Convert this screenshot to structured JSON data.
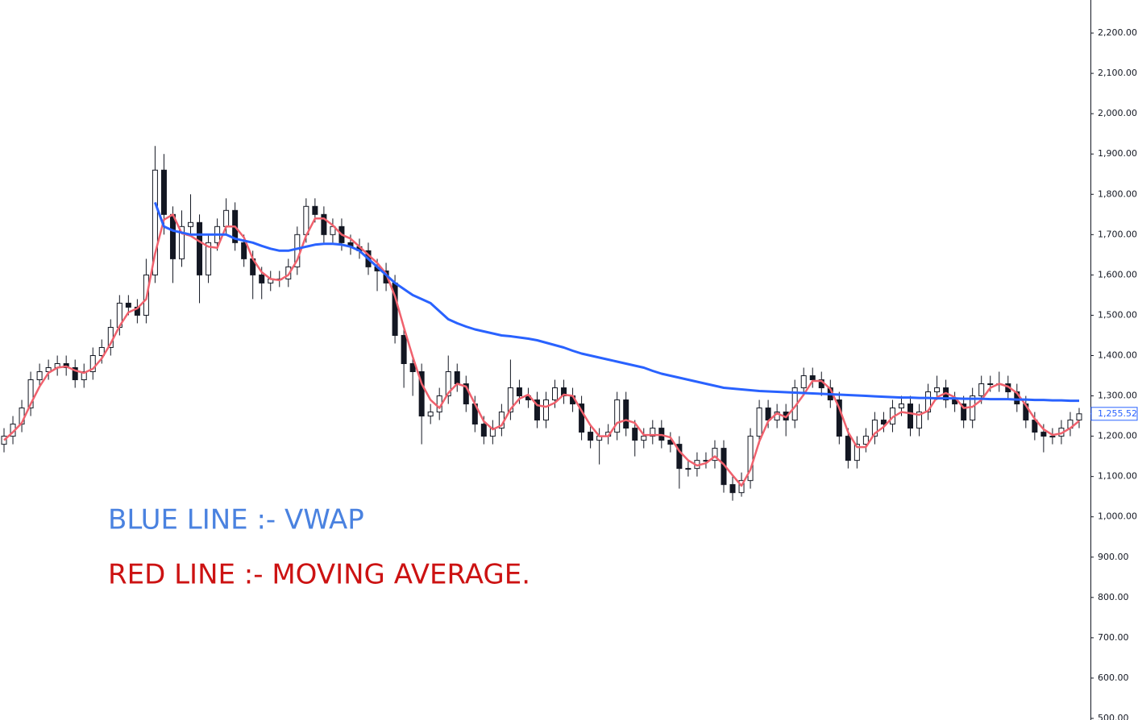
{
  "chart_data": {
    "type": "candlestick",
    "ylim": [
      496,
      2282
    ],
    "yticks": [
      {
        "value": 500,
        "label": "500.00"
      },
      {
        "value": 600,
        "label": "600.00"
      },
      {
        "value": 700,
        "label": "700.00"
      },
      {
        "value": 800,
        "label": "800.00"
      },
      {
        "value": 900,
        "label": "900.00"
      },
      {
        "value": 1000,
        "label": "1,000.00"
      },
      {
        "value": 1100,
        "label": "1,100.00"
      },
      {
        "value": 1200,
        "label": "1,200.00"
      },
      {
        "value": 1300,
        "label": "1,300.00"
      },
      {
        "value": 1400,
        "label": "1,400.00"
      },
      {
        "value": 1500,
        "label": "1,500.00"
      },
      {
        "value": 1600,
        "label": "1,600.00"
      },
      {
        "value": 1700,
        "label": "1,700.00"
      },
      {
        "value": 1800,
        "label": "1,800.00"
      },
      {
        "value": 1900,
        "label": "1,900.00"
      },
      {
        "value": 2000,
        "label": "2,000.00"
      },
      {
        "value": 2100,
        "label": "2,100.00"
      },
      {
        "value": 2200,
        "label": "2,200.00"
      }
    ],
    "up_color": "#ffffff",
    "down_color": "#131722",
    "open": [
      1180,
      1200,
      1230,
      1270,
      1340,
      1360,
      1370,
      1380,
      1370,
      1340,
      1360,
      1400,
      1420,
      1470,
      1530,
      1520,
      1500,
      1600,
      1860,
      1750,
      1640,
      1720,
      1730,
      1600,
      1680,
      1720,
      1760,
      1680,
      1640,
      1600,
      1580,
      1590,
      1590,
      1620,
      1700,
      1770,
      1750,
      1700,
      1720,
      1680,
      1670,
      1660,
      1620,
      1610,
      1580,
      1450,
      1380,
      1360,
      1250,
      1260,
      1300,
      1360,
      1330,
      1280,
      1230,
      1200,
      1220,
      1260,
      1320,
      1300,
      1290,
      1240,
      1290,
      1320,
      1300,
      1280,
      1210,
      1190,
      1200,
      1210,
      1290,
      1220,
      1190,
      1200,
      1220,
      1190,
      1180,
      1120,
      1120,
      1140,
      1140,
      1170,
      1080,
      1060,
      1090,
      1200,
      1270,
      1240,
      1260,
      1240,
      1320,
      1350,
      1340,
      1320,
      1290,
      1200,
      1140,
      1180,
      1200,
      1240,
      1230,
      1270,
      1280,
      1220,
      1260,
      1310,
      1320,
      1290,
      1280,
      1240,
      1300,
      1330,
      1330,
      1330,
      1310,
      1280,
      1240,
      1210,
      1200,
      1200,
      1220,
      1240
    ],
    "high": [
      1220,
      1250,
      1290,
      1360,
      1380,
      1390,
      1400,
      1400,
      1390,
      1380,
      1420,
      1440,
      1490,
      1550,
      1550,
      1540,
      1640,
      1920,
      1900,
      1770,
      1760,
      1800,
      1750,
      1700,
      1740,
      1790,
      1780,
      1700,
      1660,
      1620,
      1610,
      1610,
      1640,
      1720,
      1790,
      1790,
      1770,
      1740,
      1740,
      1700,
      1690,
      1680,
      1640,
      1630,
      1600,
      1470,
      1400,
      1380,
      1280,
      1320,
      1400,
      1380,
      1350,
      1300,
      1250,
      1240,
      1280,
      1390,
      1340,
      1320,
      1310,
      1310,
      1340,
      1340,
      1320,
      1300,
      1230,
      1220,
      1230,
      1310,
      1310,
      1240,
      1220,
      1240,
      1240,
      1210,
      1200,
      1140,
      1160,
      1160,
      1190,
      1190,
      1100,
      1110,
      1220,
      1290,
      1290,
      1280,
      1280,
      1340,
      1370,
      1370,
      1360,
      1340,
      1310,
      1220,
      1200,
      1220,
      1260,
      1260,
      1290,
      1300,
      1300,
      1280,
      1330,
      1350,
      1340,
      1310,
      1300,
      1320,
      1350,
      1350,
      1360,
      1350,
      1330,
      1300,
      1260,
      1230,
      1220,
      1240,
      1260,
      1270
    ],
    "low": [
      1160,
      1180,
      1210,
      1250,
      1320,
      1340,
      1350,
      1350,
      1320,
      1320,
      1340,
      1380,
      1400,
      1450,
      1500,
      1480,
      1480,
      1580,
      1700,
      1580,
      1620,
      1700,
      1530,
      1580,
      1660,
      1700,
      1660,
      1620,
      1540,
      1540,
      1560,
      1570,
      1570,
      1600,
      1680,
      1730,
      1680,
      1680,
      1660,
      1650,
      1640,
      1600,
      1560,
      1560,
      1430,
      1320,
      1300,
      1180,
      1230,
      1240,
      1280,
      1310,
      1260,
      1210,
      1180,
      1180,
      1200,
      1240,
      1280,
      1270,
      1220,
      1220,
      1270,
      1280,
      1260,
      1190,
      1170,
      1130,
      1180,
      1190,
      1200,
      1150,
      1170,
      1180,
      1170,
      1160,
      1070,
      1100,
      1100,
      1120,
      1120,
      1060,
      1040,
      1050,
      1070,
      1180,
      1220,
      1220,
      1200,
      1220,
      1300,
      1320,
      1300,
      1270,
      1180,
      1120,
      1120,
      1160,
      1180,
      1210,
      1210,
      1250,
      1200,
      1200,
      1240,
      1290,
      1270,
      1260,
      1220,
      1220,
      1280,
      1310,
      1310,
      1290,
      1260,
      1220,
      1190,
      1160,
      1180,
      1180,
      1200,
      1220
    ],
    "close": [
      1200,
      1230,
      1270,
      1340,
      1360,
      1370,
      1380,
      1370,
      1340,
      1360,
      1400,
      1420,
      1470,
      1530,
      1520,
      1500,
      1600,
      1860,
      1750,
      1640,
      1720,
      1730,
      1600,
      1680,
      1720,
      1760,
      1680,
      1640,
      1600,
      1580,
      1590,
      1590,
      1620,
      1700,
      1770,
      1750,
      1700,
      1720,
      1680,
      1670,
      1660,
      1620,
      1610,
      1580,
      1450,
      1380,
      1360,
      1250,
      1260,
      1300,
      1360,
      1330,
      1280,
      1230,
      1200,
      1220,
      1260,
      1320,
      1300,
      1290,
      1240,
      1290,
      1320,
      1300,
      1280,
      1210,
      1190,
      1200,
      1210,
      1290,
      1220,
      1190,
      1200,
      1220,
      1190,
      1180,
      1120,
      1120,
      1140,
      1140,
      1170,
      1080,
      1060,
      1090,
      1200,
      1270,
      1240,
      1260,
      1240,
      1320,
      1350,
      1340,
      1320,
      1290,
      1200,
      1140,
      1180,
      1200,
      1240,
      1230,
      1270,
      1280,
      1220,
      1260,
      1310,
      1320,
      1290,
      1280,
      1240,
      1300,
      1330,
      1330,
      1330,
      1310,
      1280,
      1240,
      1210,
      1200,
      1200,
      1220,
      1240,
      1255.52
    ],
    "series": [
      {
        "name": "VWAP",
        "color": "#2962ff",
        "values": [
          null,
          null,
          null,
          null,
          null,
          null,
          null,
          null,
          null,
          null,
          null,
          null,
          null,
          null,
          null,
          null,
          null,
          1780,
          1720,
          1710,
          1705,
          1700,
          1700,
          1700,
          1700,
          1700,
          1690,
          1685,
          1680,
          1672,
          1665,
          1660,
          1660,
          1665,
          1670,
          1675,
          1677,
          1677,
          1675,
          1670,
          1660,
          1640,
          1620,
          1600,
          1580,
          1565,
          1550,
          1540,
          1530,
          1510,
          1490,
          1480,
          1472,
          1465,
          1460,
          1455,
          1450,
          1448,
          1445,
          1442,
          1438,
          1432,
          1426,
          1420,
          1412,
          1405,
          1400,
          1395,
          1390,
          1385,
          1380,
          1375,
          1370,
          1362,
          1355,
          1350,
          1345,
          1340,
          1335,
          1330,
          1325,
          1320,
          1318,
          1316,
          1314,
          1312,
          1311,
          1310,
          1309,
          1308,
          1307,
          1306,
          1305,
          1304,
          1303,
          1302,
          1301,
          1300,
          1299,
          1298,
          1297,
          1296,
          1296,
          1295,
          1295,
          1294,
          1294,
          1294,
          1293,
          1293,
          1293,
          1292,
          1292,
          1292,
          1291,
          1291,
          1290,
          1290,
          1289,
          1289,
          1288,
          1288
        ]
      },
      {
        "name": "Moving Average",
        "color": "#f0616d",
        "values": [
          1190,
          1210,
          1233,
          1280,
          1323,
          1357,
          1370,
          1373,
          1363,
          1357,
          1367,
          1393,
          1430,
          1473,
          1507,
          1517,
          1540,
          1653,
          1737,
          1750,
          1703,
          1697,
          1683,
          1670,
          1667,
          1720,
          1720,
          1693,
          1640,
          1607,
          1590,
          1587,
          1600,
          1637,
          1697,
          1740,
          1740,
          1723,
          1700,
          1690,
          1670,
          1650,
          1630,
          1603,
          1547,
          1470,
          1397,
          1330,
          1290,
          1270,
          1307,
          1330,
          1323,
          1280,
          1237,
          1217,
          1227,
          1267,
          1293,
          1303,
          1277,
          1273,
          1283,
          1303,
          1300,
          1263,
          1227,
          1200,
          1200,
          1233,
          1240,
          1233,
          1203,
          1203,
          1203,
          1197,
          1163,
          1140,
          1127,
          1133,
          1150,
          1130,
          1103,
          1077,
          1117,
          1187,
          1237,
          1257,
          1247,
          1273,
          1303,
          1337,
          1337,
          1317,
          1270,
          1210,
          1173,
          1173,
          1207,
          1223,
          1247,
          1260,
          1257,
          1253,
          1263,
          1297,
          1307,
          1297,
          1270,
          1273,
          1290,
          1320,
          1330,
          1323,
          1307,
          1277,
          1243,
          1217,
          1203,
          1207,
          1220,
          1238
        ]
      }
    ],
    "last_price": {
      "value": 1255.52,
      "label": "1,255.52"
    },
    "annotations": [
      {
        "text": "BLUE LINE :- VWAP",
        "color": "#4a82e0"
      },
      {
        "text": "RED LINE :- MOVING AVERAGE.",
        "color": "#cc1212"
      }
    ]
  }
}
